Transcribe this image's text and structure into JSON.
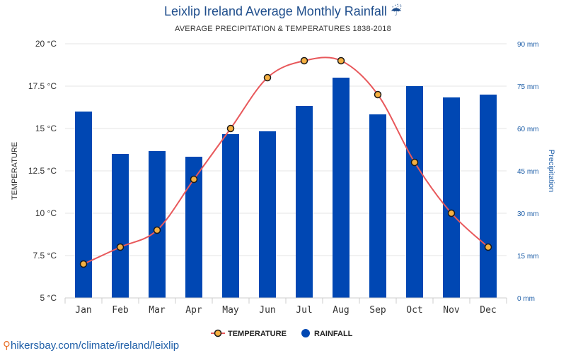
{
  "title": "Leixlip Ireland Average Monthly Rainfall",
  "title_icon": "umbrella-icon",
  "title_icon_glyph": "☔",
  "subtitle": "AVERAGE PRECIPITATION & TEMPERATURES 1838-2018",
  "footer": {
    "pin_icon": "map-pin-icon",
    "pin_glyph": "⚲",
    "text": "hikersbay.com/climate/ireland/leixlip"
  },
  "colors": {
    "rainfall": "#0047b3",
    "temperature_line": "#e8585b",
    "marker_fill": "#f5b041",
    "marker_stroke": "#1a1a1a",
    "right_axis": "#1f5fa8"
  },
  "chart_data": {
    "type": "bar",
    "categories": [
      "Jan",
      "Feb",
      "Mar",
      "Apr",
      "May",
      "Jun",
      "Jul",
      "Aug",
      "Sep",
      "Oct",
      "Nov",
      "Dec"
    ],
    "series": [
      {
        "name": "RAINFALL",
        "type": "bar",
        "axis": "right",
        "values": [
          66,
          51,
          52,
          50,
          58,
          59,
          68,
          78,
          65,
          75,
          71,
          72
        ]
      },
      {
        "name": "TEMPERATURE",
        "type": "line",
        "axis": "left",
        "values": [
          7,
          8,
          9,
          12,
          15,
          18,
          19,
          19,
          17,
          13,
          10,
          8
        ]
      }
    ],
    "ylabel_left": "TEMPERATURE",
    "ylabel_right": "Precipitation",
    "ylim_left": [
      5,
      20
    ],
    "ylim_right": [
      0,
      90
    ],
    "yticks_left": [
      "20 °C",
      "17.5 °C",
      "15 °C",
      "12.5 °C",
      "10 °C",
      "7.5 °C",
      "5 °C"
    ],
    "yticks_right": [
      "90 mm",
      "75 mm",
      "60 mm",
      "45 mm",
      "30 mm",
      "15 mm",
      "0 mm"
    ],
    "grid": true,
    "legend_position": "bottom"
  }
}
